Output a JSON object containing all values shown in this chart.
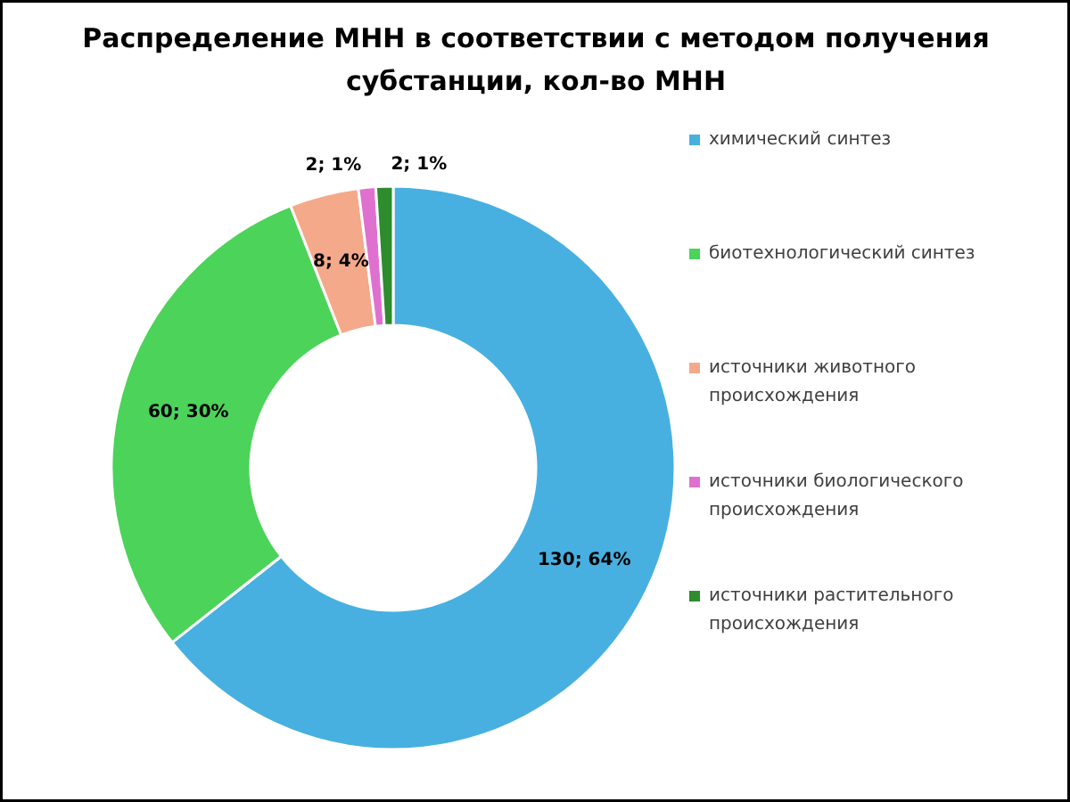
{
  "chart_data": {
    "type": "donut",
    "title": "Распределение МНН в соответствии с методом получения субстанции, кол-во МНН",
    "categories": [
      "химический синтез",
      "биотехнологический синтез",
      "источники животного происхождения",
      "источники биологического происхождения",
      "источники растительного происхождения"
    ],
    "values": [
      130,
      60,
      8,
      2,
      2
    ],
    "colors": [
      "#47b0e0",
      "#4cd35a",
      "#f4a98a",
      "#e070d0",
      "#2e8b2e"
    ],
    "value_labels": [
      "130; 64%",
      "60; 30%",
      "8; 4%",
      "2; 1%",
      "2; 1%"
    ],
    "legend": "right"
  }
}
